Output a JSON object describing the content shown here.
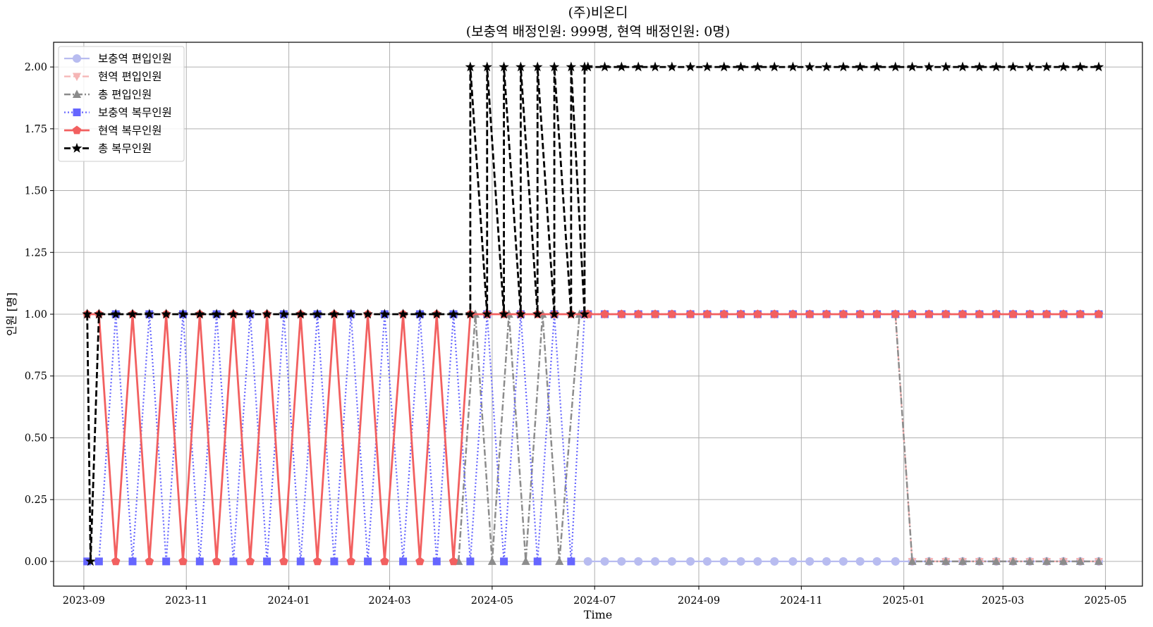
{
  "chart_data": {
    "type": "line",
    "title": "(주)비온디",
    "subtitle": "(보충역 배정인원: 999명, 현역 배정인원: 0명)",
    "xlabel": "Time",
    "ylabel": "인원 [명]",
    "ylim": [
      -0.1,
      2.1
    ],
    "xlim": [
      "2023-08-14",
      "2025-05-23"
    ],
    "grid": true,
    "legend_position": "upper-left",
    "x_ticks": [
      "2023-09",
      "2023-11",
      "2024-01",
      "2024-03",
      "2024-05",
      "2024-07",
      "2024-09",
      "2024-11",
      "2025-01",
      "2025-03",
      "2025-05"
    ],
    "y_ticks": [
      "0.00",
      "0.25",
      "0.50",
      "0.75",
      "1.00",
      "1.25",
      "1.50",
      "1.75",
      "2.00"
    ],
    "series": [
      {
        "name": "보충역 편입인원",
        "key": "s1",
        "color": "#b8bcf0",
        "marker": "circle",
        "dash": "solid",
        "width": 2.2,
        "groups": [
          {
            "dates": [
              "2024-06-27",
              "2024-07-07",
              "2024-07-17",
              "2024-07-27",
              "2024-08-06",
              "2024-08-16",
              "2024-08-27",
              "2024-09-06",
              "2024-09-16",
              "2024-09-26",
              "2024-10-06",
              "2024-10-16",
              "2024-10-27",
              "2024-11-06",
              "2024-11-16",
              "2024-11-26",
              "2024-12-06",
              "2024-12-16",
              "2024-12-27",
              "2025-01-06",
              "2025-01-16",
              "2025-01-26",
              "2025-02-05",
              "2025-02-15",
              "2025-02-25",
              "2025-03-07",
              "2025-03-17",
              "2025-03-27",
              "2025-04-06",
              "2025-04-16",
              "2025-04-27"
            ],
            "values": [
              0,
              0,
              0,
              0,
              0,
              0,
              0,
              0,
              0,
              0,
              0,
              0,
              0,
              0,
              0,
              0,
              0,
              0,
              0,
              0,
              0,
              0,
              0,
              0,
              0,
              0,
              0,
              0,
              0,
              0,
              0
            ]
          }
        ]
      },
      {
        "name": "현역 편입인원",
        "key": "s2",
        "color": "#f5b5b5",
        "marker": "triangle-down",
        "dash": "dashed",
        "width": 2.2,
        "groups": [
          {
            "dates": [
              "2024-06-27",
              "2024-07-07",
              "2024-07-17",
              "2024-07-27",
              "2024-08-06",
              "2024-08-16",
              "2024-08-27",
              "2024-09-06",
              "2024-09-16",
              "2024-09-26",
              "2024-10-06",
              "2024-10-16",
              "2024-10-27",
              "2024-11-06",
              "2024-11-16",
              "2024-11-26",
              "2024-12-06",
              "2024-12-16",
              "2024-12-27",
              "2025-01-06",
              "2025-01-16",
              "2025-01-26",
              "2025-02-05",
              "2025-02-15",
              "2025-02-25",
              "2025-03-07",
              "2025-03-17",
              "2025-03-27",
              "2025-04-06",
              "2025-04-16",
              "2025-04-27"
            ],
            "values": [
              1,
              1,
              1,
              1,
              1,
              1,
              1,
              1,
              1,
              1,
              1,
              1,
              1,
              1,
              1,
              1,
              1,
              1,
              1,
              0,
              0,
              0,
              0,
              0,
              0,
              0,
              0,
              0,
              0,
              0,
              0
            ]
          }
        ]
      },
      {
        "name": "총 편입인원",
        "key": "s3",
        "color": "#8c8c8c",
        "marker": "triangle-up",
        "dash": "dashdot",
        "width": 2.5,
        "groups": [
          {
            "dates": [
              "2024-04-11",
              "2024-04-21",
              "2024-05-01",
              "2024-05-11",
              "2024-05-21",
              "2024-05-31",
              "2024-06-10",
              "2024-06-22"
            ],
            "values": [
              0,
              1,
              0,
              1,
              0,
              1,
              0,
              1
            ]
          },
          {
            "dates": [
              "2024-12-27",
              "2025-01-06",
              "2025-01-16",
              "2025-01-26",
              "2025-02-05",
              "2025-02-15",
              "2025-02-25",
              "2025-03-07",
              "2025-03-17",
              "2025-03-27",
              "2025-04-06",
              "2025-04-16",
              "2025-04-27"
            ],
            "values": [
              1,
              0,
              0,
              0,
              0,
              0,
              0,
              0,
              0,
              0,
              0,
              0,
              0
            ]
          }
        ]
      },
      {
        "name": "보충역 복무인원",
        "key": "s4",
        "color": "#6666ff",
        "marker": "square",
        "dash": "dotted",
        "width": 2.2,
        "groups": [
          {
            "dates": [
              "2023-09-03",
              "2023-09-10",
              "2023-09-20",
              "2023-09-30",
              "2023-10-10",
              "2023-10-20",
              "2023-10-30",
              "2023-11-09",
              "2023-11-19",
              "2023-11-29",
              "2023-12-09",
              "2023-12-19",
              "2023-12-29",
              "2024-01-08",
              "2024-01-18",
              "2024-01-28",
              "2024-02-07",
              "2024-02-17",
              "2024-02-27",
              "2024-03-09",
              "2024-03-19",
              "2024-03-29",
              "2024-04-08",
              "2024-04-18",
              "2024-04-28",
              "2024-05-08",
              "2024-05-18",
              "2024-05-28",
              "2024-06-07",
              "2024-06-17",
              "2024-06-25",
              "2024-06-27",
              "2024-07-07",
              "2024-07-17",
              "2024-07-27",
              "2024-08-06",
              "2024-08-16",
              "2024-08-27",
              "2024-09-06",
              "2024-09-16",
              "2024-09-26",
              "2024-10-06",
              "2024-10-16",
              "2024-10-27",
              "2024-11-06",
              "2024-11-16",
              "2024-11-26",
              "2024-12-06",
              "2024-12-16",
              "2024-12-27",
              "2025-01-06",
              "2025-01-16",
              "2025-01-26",
              "2025-02-05",
              "2025-02-15",
              "2025-02-25",
              "2025-03-07",
              "2025-03-17",
              "2025-03-27",
              "2025-04-06",
              "2025-04-16",
              "2025-04-27"
            ],
            "values": [
              0,
              0,
              1,
              0,
              1,
              0,
              1,
              0,
              1,
              0,
              1,
              0,
              1,
              0,
              1,
              0,
              1,
              0,
              1,
              0,
              1,
              0,
              1,
              0,
              1,
              0,
              1,
              0,
              1,
              0,
              1,
              1,
              1,
              1,
              1,
              1,
              1,
              1,
              1,
              1,
              1,
              1,
              1,
              1,
              1,
              1,
              1,
              1,
              1,
              1,
              1,
              1,
              1,
              1,
              1,
              1,
              1,
              1,
              1,
              1,
              1,
              1
            ]
          }
        ]
      },
      {
        "name": "현역 복무인원",
        "key": "s5",
        "color": "#f26060",
        "marker": "pentagon",
        "dash": "solid",
        "width": 2.8,
        "groups": [
          {
            "dates": [
              "2023-09-03",
              "2023-09-10",
              "2023-09-20",
              "2023-09-30",
              "2023-10-10",
              "2023-10-20",
              "2023-10-30",
              "2023-11-09",
              "2023-11-19",
              "2023-11-29",
              "2023-12-09",
              "2023-12-19",
              "2023-12-29",
              "2024-01-08",
              "2024-01-18",
              "2024-01-28",
              "2024-02-07",
              "2024-02-17",
              "2024-02-27",
              "2024-03-09",
              "2024-03-19",
              "2024-03-29",
              "2024-04-08",
              "2024-04-18",
              "2024-04-28",
              "2024-05-08",
              "2024-05-18",
              "2024-05-28",
              "2024-06-07",
              "2024-06-17",
              "2024-06-25",
              "2024-06-27",
              "2024-07-07",
              "2024-07-17",
              "2024-07-27",
              "2024-08-06",
              "2024-08-16",
              "2024-08-27",
              "2024-09-06",
              "2024-09-16",
              "2024-09-26",
              "2024-10-06",
              "2024-10-16",
              "2024-10-27",
              "2024-11-06",
              "2024-11-16",
              "2024-11-26",
              "2024-12-06",
              "2024-12-16",
              "2024-12-27",
              "2025-01-06",
              "2025-01-16",
              "2025-01-26",
              "2025-02-05",
              "2025-02-15",
              "2025-02-25",
              "2025-03-07",
              "2025-03-17",
              "2025-03-27",
              "2025-04-06",
              "2025-04-16",
              "2025-04-27"
            ],
            "values": [
              1,
              1,
              0,
              1,
              0,
              1,
              0,
              1,
              0,
              1,
              0,
              1,
              0,
              1,
              0,
              1,
              0,
              1,
              0,
              1,
              0,
              1,
              0,
              1,
              1,
              1,
              1,
              1,
              1,
              1,
              1,
              1,
              1,
              1,
              1,
              1,
              1,
              1,
              1,
              1,
              1,
              1,
              1,
              1,
              1,
              1,
              1,
              1,
              1,
              1,
              1,
              1,
              1,
              1,
              1,
              1,
              1,
              1,
              1,
              1,
              1,
              1
            ]
          }
        ]
      },
      {
        "name": "총 복무인원",
        "key": "s6",
        "color": "#000000",
        "marker": "star",
        "dash": "dashed",
        "width": 2.8,
        "groups": [
          {
            "dates": [
              "2023-09-03",
              "2023-09-05",
              "2023-09-10",
              "2023-09-20",
              "2023-09-30",
              "2023-10-10",
              "2023-10-20",
              "2023-10-30",
              "2023-11-09",
              "2023-11-19",
              "2023-11-29",
              "2023-12-09",
              "2023-12-19",
              "2023-12-29",
              "2024-01-08",
              "2024-01-18",
              "2024-01-28",
              "2024-02-07",
              "2024-02-17",
              "2024-02-27",
              "2024-03-09",
              "2024-03-19",
              "2024-03-29",
              "2024-04-08",
              "2024-04-18",
              "2024-04-18",
              "2024-04-28",
              "2024-04-28",
              "2024-05-08",
              "2024-05-08",
              "2024-05-18",
              "2024-05-18",
              "2024-05-28",
              "2024-05-28",
              "2024-06-07",
              "2024-06-07",
              "2024-06-17",
              "2024-06-17",
              "2024-06-25",
              "2024-06-25",
              "2024-06-27",
              "2024-07-07",
              "2024-07-17",
              "2024-07-27",
              "2024-08-06",
              "2024-08-16",
              "2024-08-27",
              "2024-09-06",
              "2024-09-16",
              "2024-09-26",
              "2024-10-06",
              "2024-10-16",
              "2024-10-27",
              "2024-11-06",
              "2024-11-16",
              "2024-11-26",
              "2024-12-06",
              "2024-12-16",
              "2024-12-27",
              "2025-01-06",
              "2025-01-16",
              "2025-01-26",
              "2025-02-05",
              "2025-02-15",
              "2025-02-25",
              "2025-03-07",
              "2025-03-17",
              "2025-03-27",
              "2025-04-06",
              "2025-04-16",
              "2025-04-27"
            ],
            "values": [
              1,
              0,
              1,
              1,
              1,
              1,
              1,
              1,
              1,
              1,
              1,
              1,
              1,
              1,
              1,
              1,
              1,
              1,
              1,
              1,
              1,
              1,
              1,
              1,
              1,
              2,
              1,
              2,
              1,
              2,
              1,
              2,
              1,
              2,
              1,
              2,
              1,
              2,
              1,
              2,
              2,
              2,
              2,
              2,
              2,
              2,
              2,
              2,
              2,
              2,
              2,
              2,
              2,
              2,
              2,
              2,
              2,
              2,
              2,
              2,
              2,
              2,
              2,
              2,
              2,
              2,
              2,
              2,
              2,
              2,
              2
            ]
          }
        ]
      }
    ]
  }
}
